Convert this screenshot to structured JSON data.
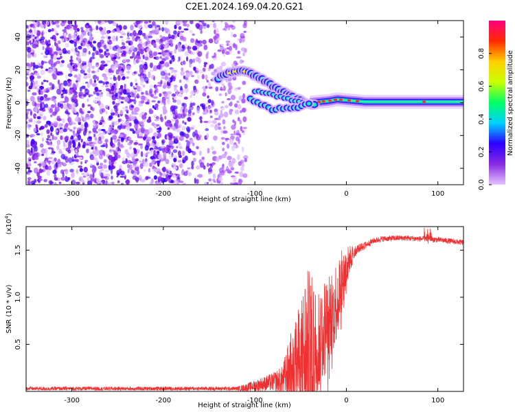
{
  "title": "C2E1.2024.169.04.20.G21",
  "chart_data": [
    {
      "type": "heatmap",
      "xlabel": "Height of straight line (km)",
      "ylabel": "Frequency (Hz)",
      "xlim": [
        -350,
        128
      ],
      "ylim": [
        -50,
        50
      ],
      "xticks": [
        -300,
        -200,
        -100,
        0,
        100
      ],
      "yticks": [
        -40,
        -20,
        0,
        20,
        40
      ],
      "colorbar": {
        "label": "Normalized spectral amplitude",
        "range": [
          0,
          1
        ],
        "ticks": [
          "0.0",
          "0.2",
          "0.4",
          "0.6",
          "0.8"
        ],
        "colors": [
          "#e4c6ff",
          "#8a2be2",
          "#2a00ff",
          "#00d0ff",
          "#00ff66",
          "#c8ff00",
          "#ffd000",
          "#ff2a00",
          "#ff0080"
        ]
      },
      "features": {
        "noise_region_x": [
          -350,
          -110
        ],
        "upper_track": [
          [
            -140,
            15
          ],
          [
            -125,
            19
          ],
          [
            -110,
            19
          ],
          [
            -95,
            15
          ],
          [
            -80,
            10
          ],
          [
            -65,
            5
          ],
          [
            -50,
            1
          ],
          [
            -35,
            -1
          ]
        ],
        "lower_track": [
          [
            -105,
            2
          ],
          [
            -90,
            -2
          ],
          [
            -80,
            -5
          ],
          [
            -70,
            -3
          ],
          [
            -60,
            -4
          ],
          [
            -50,
            -2
          ],
          [
            -40,
            0
          ]
        ],
        "mid_track": [
          [
            -100,
            7
          ],
          [
            -90,
            6
          ],
          [
            -75,
            4
          ],
          [
            -60,
            2
          ],
          [
            -45,
            0
          ]
        ],
        "carrier_track": [
          [
            -40,
            0
          ],
          [
            -20,
            1
          ],
          [
            -10,
            2
          ],
          [
            0,
            1.5
          ],
          [
            20,
            0.5
          ],
          [
            60,
            0.5
          ],
          [
            128,
            0.5
          ]
        ]
      }
    },
    {
      "type": "line",
      "xlabel": "Height of straight line (km)",
      "ylabel": "SNR (10 * v/v)",
      "scale_label": "(x10",
      "scale_exponent": "4",
      "scale_close": ")",
      "xlim": [
        -350,
        128
      ],
      "ylim": [
        0,
        1.75
      ],
      "xticks": [
        -300,
        -200,
        -100,
        0,
        100
      ],
      "yticks": [
        "0.5",
        "1.0",
        "1.5"
      ],
      "ytick_values": [
        0.5,
        1.0,
        1.5
      ],
      "line_color": "#ee3030",
      "envelope": {
        "x": [
          -350,
          -120,
          -110,
          -100,
          -90,
          -80,
          -70,
          -60,
          -50,
          -45,
          -40,
          -35,
          -30,
          -25,
          -20,
          -15,
          -10,
          -5,
          0,
          5,
          10,
          20,
          30,
          40,
          60,
          80,
          100,
          128
        ],
        "base": [
          0.03,
          0.03,
          0.04,
          0.06,
          0.08,
          0.1,
          0.12,
          0.25,
          0.35,
          0.4,
          0.45,
          0.45,
          0.55,
          0.65,
          0.75,
          0.85,
          1.0,
          1.15,
          1.3,
          1.45,
          1.5,
          1.55,
          1.6,
          1.62,
          1.63,
          1.62,
          1.61,
          1.58
        ],
        "amp": [
          0.02,
          0.02,
          0.04,
          0.06,
          0.08,
          0.1,
          0.15,
          0.4,
          0.6,
          0.9,
          0.85,
          0.7,
          0.6,
          0.55,
          0.5,
          0.45,
          0.45,
          0.35,
          0.25,
          0.1,
          0.05,
          0.04,
          0.03,
          0.03,
          0.03,
          0.03,
          0.03,
          0.03
        ]
      }
    }
  ]
}
